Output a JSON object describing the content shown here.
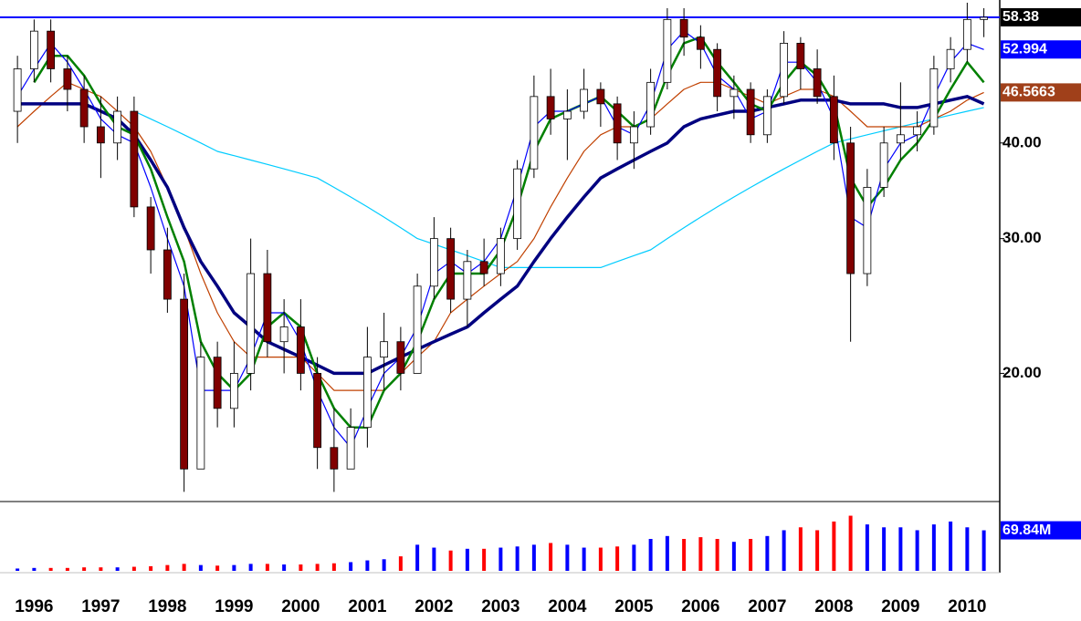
{
  "chart_data": {
    "type": "candlestick",
    "log_scale": true,
    "ylim": [
      13.6,
      61.5
    ],
    "yticks": [
      {
        "value": 20,
        "label": "20.00"
      },
      {
        "value": 30,
        "label": "30.00"
      },
      {
        "value": 40,
        "label": "40.00"
      }
    ],
    "categories": [
      null,
      "1996",
      null,
      null,
      null,
      "1997",
      null,
      null,
      null,
      "1998",
      null,
      null,
      null,
      "1999",
      null,
      null,
      null,
      "2000",
      null,
      null,
      null,
      "2001",
      null,
      null,
      null,
      "2002",
      null,
      null,
      null,
      "2003",
      null,
      null,
      null,
      "2004",
      null,
      null,
      null,
      "2005",
      null,
      null,
      null,
      "2006",
      null,
      null,
      null,
      "2007",
      null,
      null,
      null,
      "2008",
      null,
      null,
      null,
      "2009",
      null,
      null,
      null,
      "2010",
      null
    ],
    "up_color": "#ffffff",
    "down_color": "#800000",
    "ohlc": [
      [
        44,
        52,
        40,
        50
      ],
      [
        50,
        58,
        48,
        56
      ],
      [
        56,
        58,
        48,
        50
      ],
      [
        50,
        52,
        44,
        47
      ],
      [
        47,
        49,
        40,
        42
      ],
      [
        42,
        46,
        36,
        40
      ],
      [
        40,
        46,
        38,
        44
      ],
      [
        44,
        46,
        32,
        33
      ],
      [
        33,
        34,
        27,
        29
      ],
      [
        29,
        31,
        24,
        25
      ],
      [
        25,
        27,
        14,
        15
      ],
      [
        15,
        22,
        15,
        21
      ],
      [
        21,
        22,
        17,
        18
      ],
      [
        18,
        22,
        17,
        20
      ],
      [
        20,
        30,
        19,
        27
      ],
      [
        27,
        29,
        21,
        22
      ],
      [
        22,
        25,
        20,
        23
      ],
      [
        23,
        25,
        19,
        20
      ],
      [
        20,
        21,
        15,
        16
      ],
      [
        16,
        18,
        14,
        15
      ],
      [
        15,
        18,
        15,
        17
      ],
      [
        17,
        23,
        16,
        21
      ],
      [
        21,
        24,
        19,
        22
      ],
      [
        22,
        23,
        19,
        20
      ],
      [
        20,
        27,
        20,
        26
      ],
      [
        26,
        32,
        25,
        30
      ],
      [
        30,
        31,
        24,
        25
      ],
      [
        25,
        29,
        23,
        28
      ],
      [
        28,
        30,
        26,
        27
      ],
      [
        27,
        31,
        26,
        30
      ],
      [
        30,
        38,
        29,
        37
      ],
      [
        37,
        49,
        36,
        46
      ],
      [
        46,
        50,
        41,
        43
      ],
      [
        43,
        47,
        38,
        44
      ],
      [
        44,
        50,
        43,
        47
      ],
      [
        47,
        48,
        42,
        45
      ],
      [
        45,
        46,
        38,
        40
      ],
      [
        40,
        44,
        37,
        42
      ],
      [
        42,
        50,
        41,
        48
      ],
      [
        48,
        60,
        47,
        58
      ],
      [
        58,
        60,
        52,
        55
      ],
      [
        55,
        57,
        50,
        53
      ],
      [
        53,
        54,
        44,
        46
      ],
      [
        46,
        49,
        43,
        47
      ],
      [
        47,
        48,
        40,
        41
      ],
      [
        41,
        47,
        40,
        46
      ],
      [
        46,
        56,
        45,
        54
      ],
      [
        54,
        55,
        47,
        50
      ],
      [
        50,
        53,
        45,
        46
      ],
      [
        46,
        49,
        38,
        40
      ],
      [
        40,
        42,
        22,
        27
      ],
      [
        27,
        37,
        26,
        35
      ],
      [
        35,
        42,
        34,
        40
      ],
      [
        40,
        48,
        38,
        41
      ],
      [
        41,
        44,
        39,
        42
      ],
      [
        42,
        52,
        41,
        50
      ],
      [
        50,
        55,
        48,
        53
      ],
      [
        53,
        61,
        51,
        58
      ],
      [
        58,
        60,
        55,
        58.38
      ]
    ],
    "series": [
      {
        "color": "#00ccff",
        "width": 1.2,
        "values": [
          null,
          null,
          null,
          null,
          null,
          null,
          null,
          44,
          43,
          42,
          41,
          40,
          39,
          38.5,
          38,
          37.5,
          37,
          36.5,
          36,
          35,
          34,
          33,
          32,
          31,
          30,
          29.5,
          29,
          28.5,
          28,
          27.5,
          27.5,
          27.5,
          27.5,
          27.5,
          27.5,
          27.5,
          28,
          28.5,
          29,
          30,
          31,
          32,
          33,
          34,
          35,
          36,
          37,
          38,
          39,
          40,
          40.5,
          41,
          41.5,
          42,
          42.5,
          43,
          43.5,
          44,
          44.5
        ]
      },
      {
        "color": "#c04000",
        "width": 1.2,
        "values": [
          42,
          44,
          46,
          48,
          47,
          46,
          44,
          42,
          39,
          35,
          31,
          27,
          24,
          22,
          21,
          21,
          21,
          21,
          20,
          19,
          19,
          19,
          19,
          20,
          21,
          22,
          24,
          25,
          26,
          27,
          28,
          30,
          33,
          36,
          39,
          41,
          42,
          42,
          43,
          45,
          47,
          48,
          48,
          47,
          46,
          45,
          46,
          47,
          47,
          46,
          44,
          42,
          42,
          42,
          42,
          43,
          44,
          45.5,
          46.5663
        ]
      },
      {
        "color": "#000080",
        "width": 3.5,
        "values": [
          45,
          45,
          45,
          45,
          45,
          44,
          43,
          41,
          38,
          35,
          31,
          28,
          26,
          24,
          23,
          22,
          21.5,
          21,
          20.5,
          20,
          20,
          20,
          20.5,
          21,
          21.5,
          22,
          22.5,
          23,
          24,
          25,
          26,
          28,
          30,
          32,
          34,
          36,
          37,
          38,
          39,
          40,
          42,
          43,
          43.5,
          44,
          44,
          44.5,
          45,
          45.5,
          45.5,
          45.5,
          45,
          45,
          45,
          44.5,
          44.5,
          45,
          45.5,
          46,
          45
        ]
      },
      {
        "color": "#008000",
        "width": 2.5,
        "values": [
          null,
          48,
          52,
          52,
          49,
          45,
          42,
          41,
          37,
          32,
          28,
          22,
          20,
          19,
          20,
          23,
          24,
          23,
          20,
          18,
          17,
          17,
          19,
          20,
          22,
          25,
          27,
          27,
          27,
          29,
          33,
          39,
          43,
          44,
          45,
          46,
          44,
          42,
          43,
          49,
          54,
          55,
          51,
          48,
          45,
          44,
          48,
          51,
          49,
          45,
          36,
          33,
          35,
          38,
          40,
          43,
          47,
          51,
          48
        ]
      },
      {
        "color": "#0000ff",
        "width": 1.2,
        "values": [
          46,
          50,
          54,
          51,
          47,
          43,
          41,
          40,
          35,
          30,
          26,
          19,
          19,
          19,
          21,
          24,
          24,
          22,
          19,
          17,
          16,
          18,
          20,
          21,
          23,
          27,
          28,
          27,
          28,
          30,
          35,
          42,
          44,
          44,
          45,
          46,
          42,
          41,
          45,
          53,
          56,
          54,
          49,
          47,
          43,
          44,
          51,
          51,
          48,
          43,
          32,
          31,
          37,
          40,
          41,
          46,
          51,
          54,
          52.994
        ]
      }
    ],
    "tag_colors": [
      "#000000",
      "#0000ff",
      "#a0401a"
    ],
    "volume": {
      "ylim": [
        0,
        110
      ],
      "up_color": "#0000ff",
      "down_color": "#ff0000",
      "values": [
        4,
        5,
        5,
        5,
        6,
        6,
        6,
        7,
        8,
        10,
        12,
        10,
        9,
        10,
        12,
        12,
        11,
        11,
        12,
        13,
        15,
        18,
        20,
        25,
        45,
        40,
        35,
        38,
        38,
        40,
        42,
        45,
        48,
        45,
        40,
        40,
        42,
        45,
        55,
        60,
        55,
        58,
        55,
        50,
        55,
        60,
        70,
        75,
        70,
        85,
        95,
        80,
        75,
        75,
        70,
        80,
        85,
        75,
        69.84
      ],
      "last_label": {
        "value": 69.84,
        "label": "69.84M"
      }
    }
  }
}
